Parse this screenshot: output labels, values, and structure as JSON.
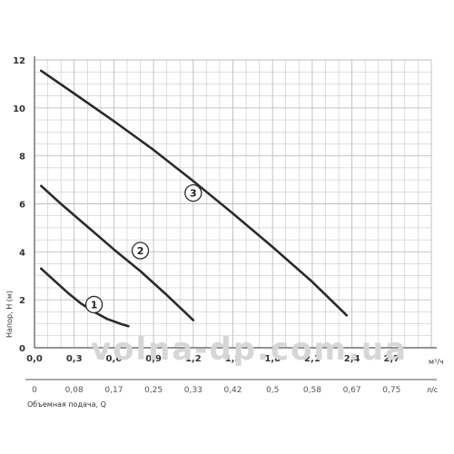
{
  "chart_data": {
    "type": "line",
    "y_axis": {
      "label": "Напор, H (м)",
      "ticks": [
        "0",
        "2",
        "4",
        "6",
        "8",
        "10",
        "12"
      ],
      "range": [
        0,
        12
      ]
    },
    "x_axis": {
      "label": "Объемная подача, Q",
      "unit": "м³/ч",
      "range": [
        0,
        3
      ],
      "ticks": [
        "0,0",
        "0,3",
        "0,6",
        "0,9",
        "1,2",
        "1,5",
        "1,8",
        "2,1",
        "2,4",
        "2,7"
      ],
      "secondary_unit": "л/с",
      "secondary_ticks": [
        "0",
        "0,08",
        "0,17",
        "0,25",
        "0,33",
        "0,42",
        "0,5",
        "0,58",
        "0,67",
        "0,75"
      ]
    },
    "grid": true,
    "series": [
      {
        "name": "1",
        "x": [
          0.05,
          0.15,
          0.25,
          0.35,
          0.45,
          0.55,
          0.65,
          0.71
        ],
        "y": [
          3.3,
          2.8,
          2.3,
          1.85,
          1.5,
          1.2,
          1.0,
          0.9
        ]
      },
      {
        "name": "2",
        "x": [
          0.05,
          0.2,
          0.4,
          0.6,
          0.8,
          1.0,
          1.2
        ],
        "y": [
          6.75,
          6.0,
          5.05,
          4.1,
          3.2,
          2.2,
          1.15
        ]
      },
      {
        "name": "3",
        "x": [
          0.05,
          0.3,
          0.6,
          0.9,
          1.2,
          1.5,
          1.8,
          2.1,
          2.36
        ],
        "y": [
          11.55,
          10.6,
          9.45,
          8.25,
          6.95,
          5.6,
          4.2,
          2.75,
          1.35
        ]
      }
    ],
    "series_labels": [
      {
        "text": "1",
        "x": 0.45,
        "y": 1.8
      },
      {
        "text": "2",
        "x": 0.8,
        "y": 4.05
      },
      {
        "text": "3",
        "x": 1.2,
        "y": 6.45
      }
    ]
  },
  "watermark": "volna-dp.com.ua"
}
